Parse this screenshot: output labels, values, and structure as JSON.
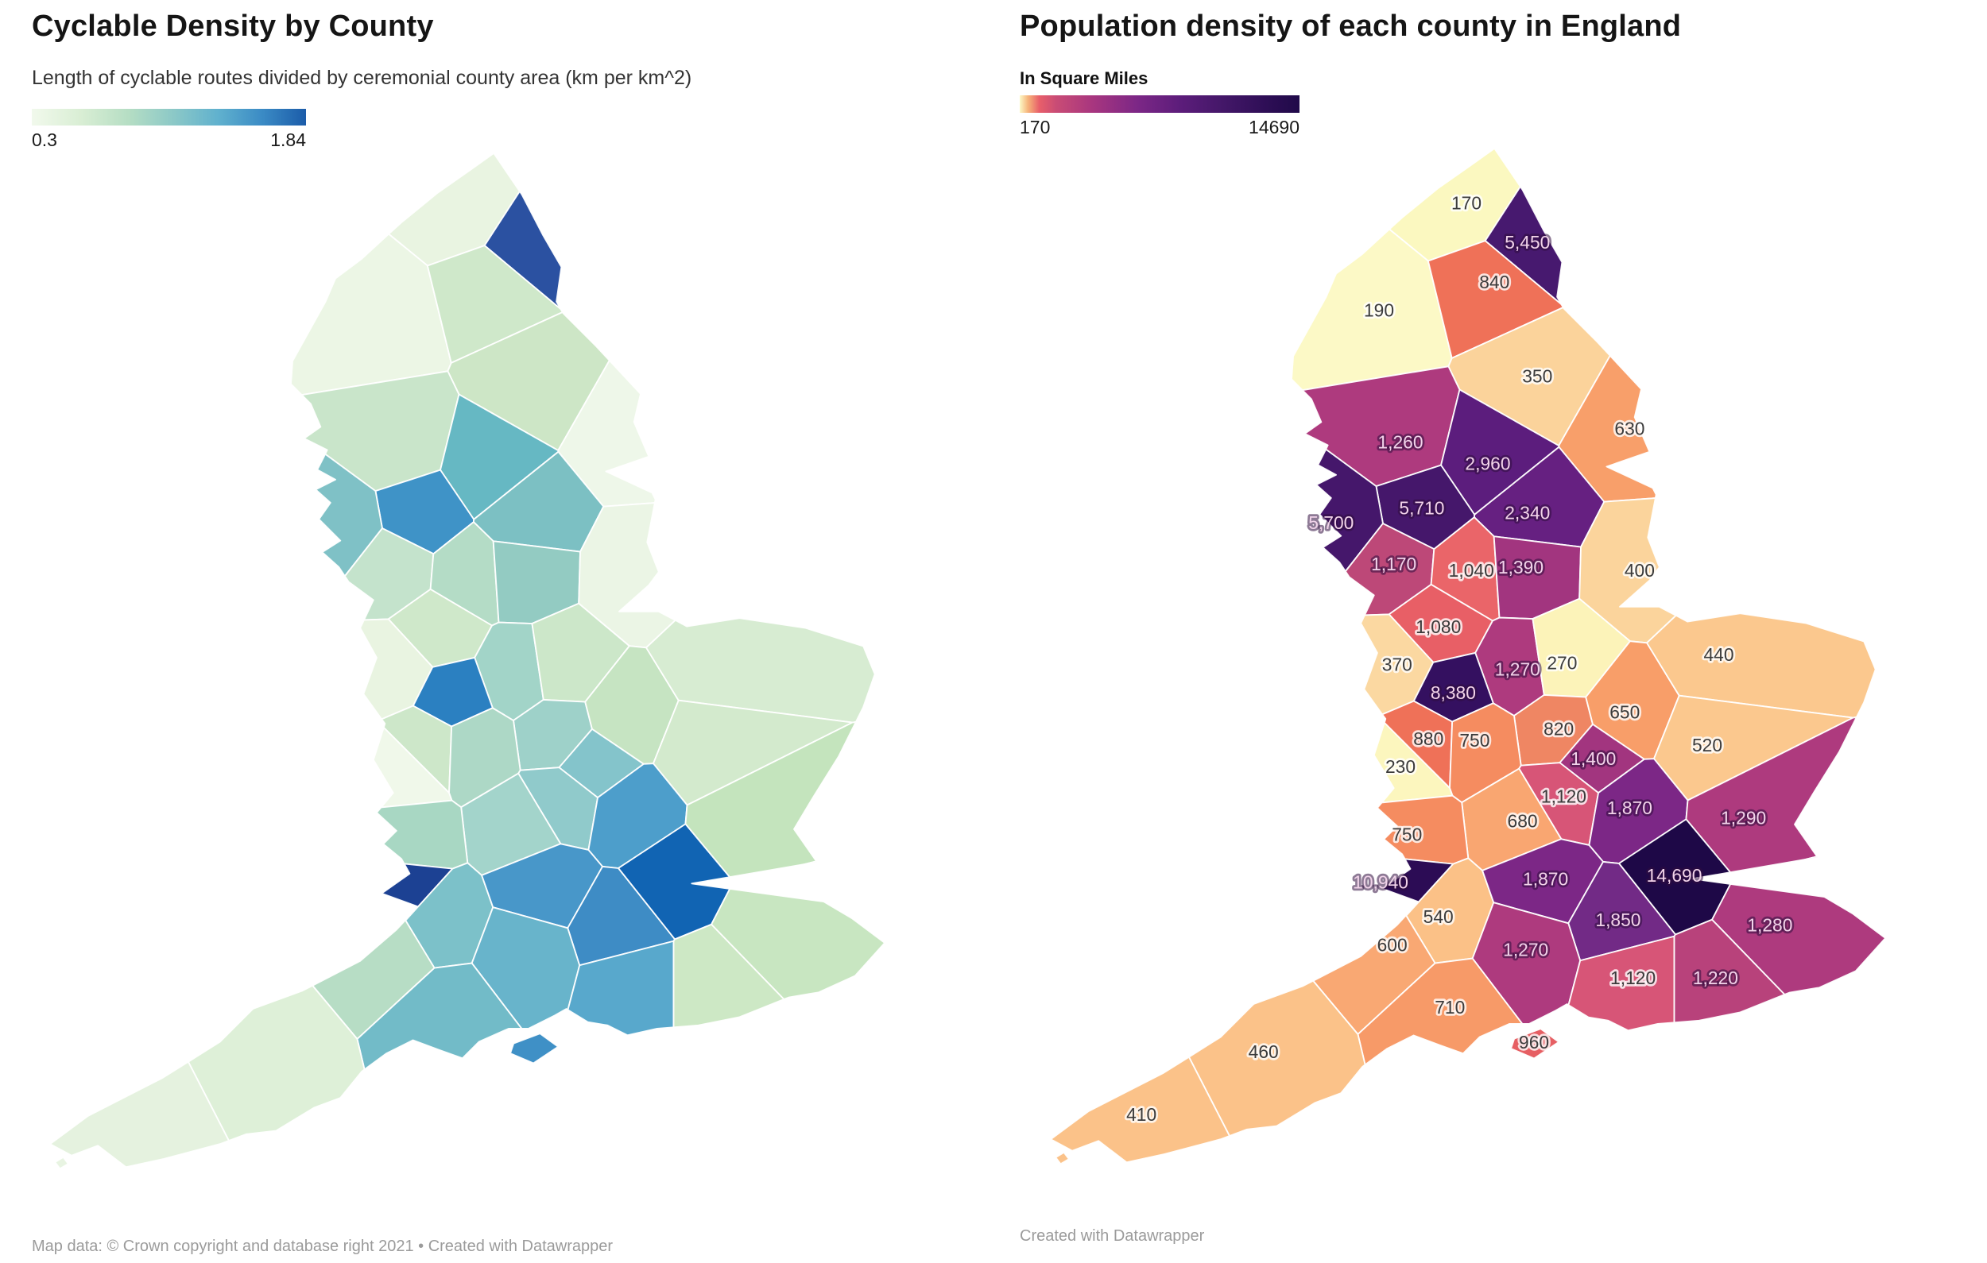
{
  "left_panel": {
    "title": "Cyclable Density by County",
    "subtitle": "Length of cyclable routes divided by ceremonial county area (km per km^2)",
    "legend": {
      "min": "0.3",
      "max": "1.84",
      "gradient": [
        "#f1f9ec 0%",
        "#d9eed4 18%",
        "#b6dec4 35%",
        "#8bc8c7 52%",
        "#60b1ce 68%",
        "#3b8bc5 84%",
        "#1b5ca9 100%"
      ]
    },
    "footer": "Map data: © Crown copyright and database right 2021  • Created with Datawrapper"
  },
  "right_panel": {
    "title": "Population density of each county in England",
    "legend": {
      "label": "In Square Miles",
      "min": "170",
      "max": "14690",
      "gradient": [
        "#fcf9c7 0%",
        "#f6b37a 3%",
        "#e85f6a 7%",
        "#c94c75 13%",
        "#a8367f 26%",
        "#7c2786 42%",
        "#5d1d7b 57%",
        "#431768 73%",
        "#2e0e56 88%",
        "#200a49 100%"
      ]
    },
    "footer": "Created with Datawrapper"
  },
  "chart_data": {
    "type": "choropleth-map-pair",
    "region": "England ceremonial counties",
    "maps": [
      {
        "type": "choropleth",
        "title": "Cyclable Density by County",
        "unit": "km per km^2",
        "legend_min": 0.3,
        "legend_max": 1.84,
        "values_labeled": false,
        "palette": "green-to-blue"
      },
      {
        "type": "choropleth",
        "title": "Population density of each county in England",
        "unit": "people per square mile",
        "legend_label": "In Square Miles",
        "legend_min": 170,
        "legend_max": 14690,
        "values_labeled": true,
        "palette": "yellow-red-purple"
      }
    ],
    "scilly": {
      "lf": "#e8f4e2",
      "rf": "#fbc289"
    },
    "counties": [
      {
        "v": "170",
        "rf": "#fbf8c0",
        "lf": "#e9f4e1",
        "s": [
          335,
          95
        ]
      },
      {
        "v": "5,450",
        "rf": "#47196f",
        "lf": "#2b51a1",
        "s": [
          372,
          119
        ],
        "light": true
      },
      {
        "v": "190",
        "rf": "#fcf9c6",
        "lf": "#ecf6e5",
        "s": [
          282,
          160
        ]
      },
      {
        "v": "840",
        "rf": "#ef7158",
        "lf": "#cfe8ca",
        "s": [
          352,
          143
        ]
      },
      {
        "v": "350",
        "rf": "#fbd39b",
        "lf": "#cde6c6",
        "s": [
          378,
          200
        ]
      },
      {
        "v": "630",
        "rf": "#f89f6a",
        "lf": "#eef7e9",
        "s": [
          434,
          232
        ]
      },
      {
        "v": "1,260",
        "rf": "#ae3a7e",
        "lf": "#c9e5ca",
        "s": [
          295,
          240
        ],
        "light": true
      },
      {
        "v": "2,960",
        "rf": "#5c1d7d",
        "lf": "#66b8c3",
        "s": [
          348,
          253
        ],
        "light": true
      },
      {
        "v": "5,710",
        "rf": "#45176b",
        "lf": "#3f93c7",
        "s": [
          308,
          280
        ],
        "light": true
      },
      {
        "v": "5,700",
        "rf": "#45176b",
        "lf": "#7fc1c6",
        "s": [
          259,
          289
        ],
        "light": true,
        "lp": [
          253,
          289
        ]
      },
      {
        "v": "2,340",
        "rf": "#662081",
        "lf": "#7cc0c3",
        "s": [
          372,
          283
        ],
        "light": true
      },
      {
        "v": "1,170",
        "rf": "#bd4878",
        "lf": "#c4e3cc",
        "s": [
          291,
          314
        ],
        "light": true
      },
      {
        "v": "1,040",
        "rf": "#ea6569",
        "lf": "#b4dcc6",
        "s": [
          338,
          318
        ]
      },
      {
        "v": "1,390",
        "rf": "#a2357f",
        "lf": "#93cbc2",
        "s": [
          368,
          316
        ],
        "light": true
      },
      {
        "v": "400",
        "rf": "#fbd49c",
        "lf": "#ebf5e5",
        "s": [
          440,
          318
        ]
      },
      {
        "v": "1,080",
        "rf": "#e85f66",
        "lf": "#cfe8ca",
        "s": [
          318,
          352
        ]
      },
      {
        "v": "370",
        "rf": "#fbd8a1",
        "lf": "#e9f4e1",
        "s": [
          293,
          375
        ]
      },
      {
        "v": "1,270",
        "rf": "#ae3a7e",
        "lf": "#a2d4c8",
        "s": [
          366,
          378
        ],
        "light": true
      },
      {
        "v": "270",
        "rf": "#fcf3b9",
        "lf": "#cce7c9",
        "s": [
          393,
          374
        ]
      },
      {
        "v": "8,380",
        "rf": "#341060",
        "lf": "#2b80c1",
        "s": [
          327,
          392
        ],
        "light": true
      },
      {
        "v": "820",
        "rf": "#ef8663",
        "lf": "#9ed1c9",
        "s": [
          391,
          414
        ]
      },
      {
        "v": "650",
        "rf": "#f89e69",
        "lf": "#c6e4c2",
        "s": [
          431,
          404
        ]
      },
      {
        "v": "440",
        "rf": "#fbc88e",
        "lf": "#d7ecd2",
        "s": [
          488,
          369
        ]
      },
      {
        "v": "520",
        "rf": "#fbc88e",
        "lf": "#d3eacd",
        "s": [
          481,
          424
        ]
      },
      {
        "v": "230",
        "rf": "#fcf6be",
        "lf": "#f0f8ea",
        "s": [
          295,
          437
        ]
      },
      {
        "v": "880",
        "rf": "#ef7158",
        "lf": "#cde7c9",
        "s": [
          312,
          420
        ]
      },
      {
        "v": "750",
        "rf": "#f58c60",
        "lf": "#add8c6",
        "s": [
          340,
          421
        ]
      },
      {
        "v": "1,400",
        "rf": "#a2357f",
        "lf": "#84c4cb",
        "s": [
          412,
          432
        ],
        "light": true
      },
      {
        "v": "1,120",
        "rf": "#d75577",
        "lf": "#90cacb",
        "s": [
          394,
          455
        ]
      },
      {
        "v": "680",
        "rf": "#f9a671",
        "lf": "#a3d4cb",
        "s": [
          369,
          470
        ]
      },
      {
        "v": "1,870",
        "rf": "#7c2786",
        "lf": "#4d9ecb",
        "s": [
          434,
          462
        ],
        "light": true
      },
      {
        "v": "1,290",
        "rf": "#ae3a7e",
        "lf": "#c4e4bd",
        "s": [
          503,
          468
        ],
        "light": true
      },
      {
        "v": "750",
        "rf": "#f58c60",
        "lf": "#a8d7c3",
        "s": [
          299,
          478
        ]
      },
      {
        "v": "10,940",
        "rf": "#2c0c55",
        "lf": "#1c4193",
        "s": [
          296,
          508
        ],
        "light": true,
        "lp": [
          283,
          507
        ]
      },
      {
        "v": "540",
        "rf": "#fbc187",
        "lf": "#7cc1c9",
        "s": [
          318,
          528
        ]
      },
      {
        "v": "600",
        "rf": "#f9a873",
        "lf": "#b7ddc5",
        "s": [
          290,
          545
        ]
      },
      {
        "v": "1,870",
        "rf": "#7c2786",
        "lf": "#4897c9",
        "s": [
          383,
          505
        ],
        "light": true
      },
      {
        "v": "14,690",
        "rf": "#1e0847",
        "lf": "#1164b3",
        "s": [
          461,
          503
        ],
        "light": true
      },
      {
        "v": "1,850",
        "rf": "#722a86",
        "lf": "#3e8cc5",
        "s": [
          427,
          530
        ],
        "light": true
      },
      {
        "v": "1,270",
        "rf": "#ae3a7e",
        "lf": "#68b4cb",
        "s": [
          371,
          548
        ],
        "light": true
      },
      {
        "v": "1,280",
        "rf": "#ae3a7e",
        "lf": "#c8e6c1",
        "s": [
          519,
          533
        ],
        "light": true
      },
      {
        "v": "1,120",
        "rf": "#d75577",
        "lf": "#58a8cc",
        "s": [
          436,
          565
        ]
      },
      {
        "v": "1,220",
        "rf": "#b8427b",
        "lf": "#cde8c5",
        "s": [
          486,
          565
        ],
        "light": true
      },
      {
        "v": "710",
        "rf": "#f79a68",
        "lf": "#72bbc8",
        "s": [
          325,
          583
        ]
      },
      {
        "v": "460",
        "rf": "#fbc289",
        "lf": "#def0d8",
        "s": [
          212,
          610
        ]
      },
      {
        "v": "410",
        "rf": "#fbc289",
        "lf": "#e5f2df",
        "s": [
          138,
          648
        ]
      },
      {
        "v": "960",
        "rf": "#e65f63",
        "lf": "#3f90c6",
        "s": [
          376,
          604
        ],
        "island": true
      }
    ]
  }
}
